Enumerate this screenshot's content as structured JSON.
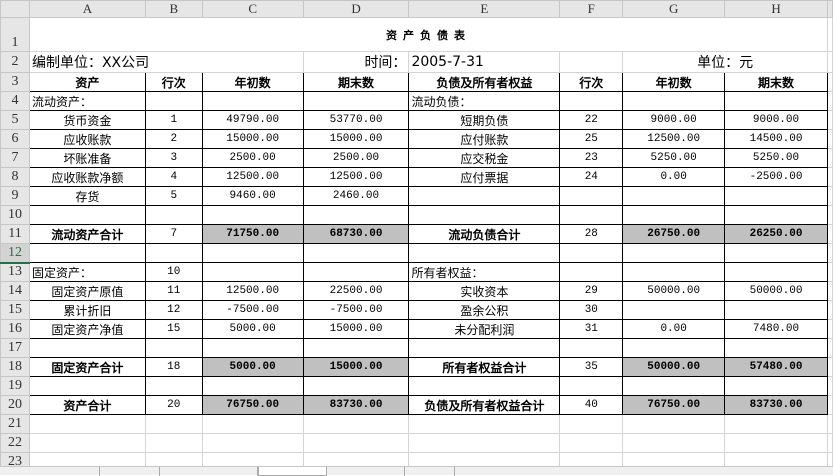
{
  "columns": [
    "A",
    "B",
    "C",
    "D",
    "E",
    "F",
    "G",
    "H"
  ],
  "title": "资产负债表",
  "info": {
    "company": "编制单位：XX公司",
    "date_label": "时间：",
    "date": "2005-7-31",
    "unit": "单位：元"
  },
  "header": [
    "资产",
    "行次",
    "年初数",
    "期末数",
    "负债及所有者权益",
    "行次",
    "年初数",
    "期末数"
  ],
  "rows": [
    {
      "n": 4,
      "cells": [
        "流动资产：",
        "",
        "",
        "",
        "流动负债：",
        "",
        "",
        ""
      ]
    },
    {
      "n": 5,
      "cells": [
        "货币资金",
        "1",
        "49790.00",
        "53770.00",
        "短期负债",
        "22",
        "9000.00",
        "9000.00"
      ]
    },
    {
      "n": 6,
      "cells": [
        "应收账款",
        "2",
        "15000.00",
        "15000.00",
        "应付账款",
        "25",
        "12500.00",
        "14500.00"
      ]
    },
    {
      "n": 7,
      "cells": [
        "坏账准备",
        "3",
        "2500.00",
        "2500.00",
        "应交税金",
        "23",
        "5250.00",
        "5250.00"
      ]
    },
    {
      "n": 8,
      "cells": [
        "应收账款净额",
        "4",
        "12500.00",
        "12500.00",
        "应付票据",
        "24",
        "0.00",
        "-2500.00"
      ]
    },
    {
      "n": 9,
      "cells": [
        "存货",
        "5",
        "9460.00",
        "2460.00",
        "",
        "",
        "",
        ""
      ]
    },
    {
      "n": 10,
      "cells": [
        "",
        "",
        "",
        "",
        "",
        "",
        "",
        ""
      ]
    },
    {
      "n": 11,
      "total": true,
      "cells": [
        "流动资产合计",
        "7",
        "71750.00",
        "68730.00",
        "流动负债合计",
        "28",
        "26750.00",
        "26250.00"
      ]
    },
    {
      "n": 12,
      "selected": true,
      "cells": [
        "",
        "",
        "",
        "",
        "",
        "",
        "",
        ""
      ]
    },
    {
      "n": 13,
      "cells": [
        "固定资产：",
        "10",
        "",
        "",
        "所有者权益：",
        "",
        "",
        ""
      ]
    },
    {
      "n": 14,
      "cells": [
        "固定资产原值",
        "11",
        "12500.00",
        "22500.00",
        "实收资本",
        "29",
        "50000.00",
        "50000.00"
      ]
    },
    {
      "n": 15,
      "cells": [
        "累计折旧",
        "12",
        "-7500.00",
        "-7500.00",
        "盈余公积",
        "30",
        "",
        ""
      ]
    },
    {
      "n": 16,
      "cells": [
        "固定资产净值",
        "15",
        "5000.00",
        "15000.00",
        "未分配利润",
        "31",
        "0.00",
        "7480.00"
      ]
    },
    {
      "n": 17,
      "cells": [
        "",
        "",
        "",
        "",
        "",
        "",
        "",
        ""
      ]
    },
    {
      "n": 18,
      "total": true,
      "cells": [
        "固定资产合计",
        "18",
        "5000.00",
        "15000.00",
        "所有者权益合计",
        "35",
        "50000.00",
        "57480.00"
      ]
    },
    {
      "n": 19,
      "cells": [
        "",
        "",
        "",
        "",
        "",
        "",
        "",
        ""
      ]
    },
    {
      "n": 20,
      "total": true,
      "cells": [
        "资产合计",
        "20",
        "76750.00",
        "83730.00",
        "负债及所有者权益合计",
        "40",
        "76750.00",
        "83730.00"
      ]
    }
  ],
  "empty_rows": [
    21,
    22,
    23
  ],
  "colors": {
    "total_fill": "#c0c0c0",
    "selected_row_header": "#217346"
  }
}
